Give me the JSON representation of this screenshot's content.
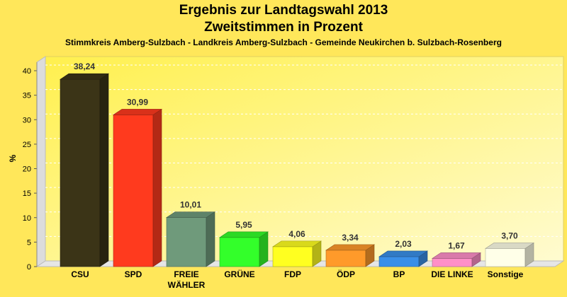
{
  "chart_data": {
    "type": "bar",
    "title": "Ergebnis zur Landtagswahl 2013",
    "subtitle": "Zweitstimmen in Prozent",
    "caption": "Stimmkreis Amberg-Sulzbach - Landkreis Amberg-Sulzbach - Gemeinde Neukirchen b. Sulzbach-Rosenberg",
    "ylabel": "%",
    "xlabel": "",
    "ylim": [
      0,
      40
    ],
    "yticks": [
      0,
      5,
      10,
      15,
      20,
      25,
      30,
      35,
      40
    ],
    "grid": true,
    "categories": [
      "CSU",
      "SPD",
      "FREIE WÄHLER",
      "GRÜNE",
      "FDP",
      "ÖDP",
      "BP",
      "DIE LINKE",
      "Sonstige"
    ],
    "category_lines": [
      [
        "CSU"
      ],
      [
        "SPD"
      ],
      [
        "FREIE",
        "WÄHLER"
      ],
      [
        "GRÜNE"
      ],
      [
        "FDP"
      ],
      [
        "ÖDP"
      ],
      [
        "BP"
      ],
      [
        "DIE LINKE"
      ],
      [
        "Sonstige"
      ]
    ],
    "values": [
      38.24,
      30.99,
      10.01,
      5.95,
      4.06,
      3.34,
      2.03,
      1.67,
      3.7
    ],
    "value_labels": [
      "38,24",
      "30,99",
      "10,01",
      "5,95",
      "4,06",
      "3,34",
      "2,03",
      "1,67",
      "3,70"
    ],
    "colors": [
      "#3b3417",
      "#ff3a1e",
      "#6f9a7b",
      "#33ff2a",
      "#ffff20",
      "#ff9a2a",
      "#3a8fe8",
      "#ff8fc8",
      "#ffffe8"
    ]
  }
}
